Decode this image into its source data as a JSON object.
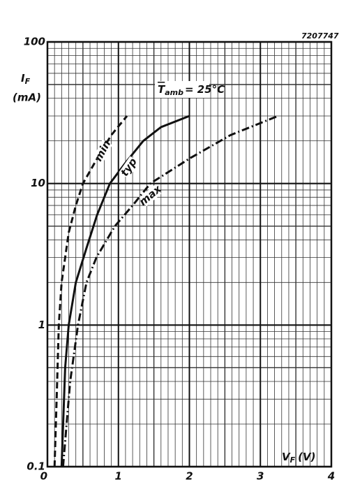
{
  "chart_data": {
    "type": "line",
    "figure_code": "7207747",
    "ylabel": {
      "symbol": "I",
      "subscript": "F",
      "unit": "(mA)"
    },
    "xlabel": {
      "symbol": "V",
      "subscript": "F",
      "unit": "(V)"
    },
    "annotation": {
      "symbol": "T",
      "subscript": "amb",
      "text": "= 25°C"
    },
    "log_y": true,
    "grid": true,
    "xlim": [
      0,
      4
    ],
    "xticks": [
      0,
      1,
      2,
      3,
      4
    ],
    "ylim": [
      0.1,
      100
    ],
    "yticks": [
      0.1,
      1,
      10,
      100
    ],
    "series": [
      {
        "name": "min",
        "color": "#111111",
        "style": "dashed",
        "x": [
          0.1,
          0.13,
          0.16,
          0.2,
          0.3,
          0.4,
          0.5,
          0.7,
          0.9,
          1.12
        ],
        "values": [
          0.1,
          0.3,
          1,
          2,
          4.5,
          7,
          10,
          15,
          22,
          30
        ]
      },
      {
        "name": "typ",
        "color": "#111111",
        "style": "solid",
        "x": [
          0.2,
          0.25,
          0.3,
          0.4,
          0.55,
          0.7,
          0.88,
          1.1,
          1.35,
          1.6,
          2.0
        ],
        "values": [
          0.1,
          0.5,
          1,
          2,
          3.5,
          6,
          10,
          14,
          20,
          25,
          30
        ]
      },
      {
        "name": "max",
        "color": "#111111",
        "style": "dashdot",
        "x": [
          0.22,
          0.32,
          0.43,
          0.55,
          0.69,
          0.95,
          1.2,
          1.45,
          2.0,
          2.58,
          3.25
        ],
        "values": [
          0.1,
          0.4,
          1,
          2,
          3,
          5,
          7,
          10,
          15,
          22,
          30
        ]
      }
    ]
  }
}
